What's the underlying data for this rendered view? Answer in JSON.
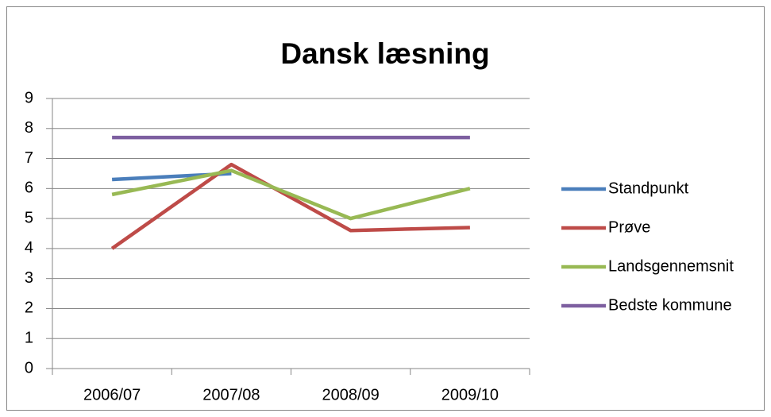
{
  "chart_data": {
    "type": "line",
    "title": "Dansk læsning",
    "categories": [
      "2006/07",
      "2007/08",
      "2008/09",
      "2009/10"
    ],
    "series": [
      {
        "name": "Standpunkt",
        "color": "#4a7ebb",
        "values": [
          6.3,
          6.5,
          null,
          null
        ]
      },
      {
        "name": "Prøve",
        "color": "#be4b48",
        "values": [
          4,
          6.8,
          4.6,
          4.7
        ]
      },
      {
        "name": "Landsgennemsnit",
        "color": "#98b954",
        "values": [
          5.8,
          6.6,
          5.0,
          6.0
        ]
      },
      {
        "name": "Bedste kommune",
        "color": "#7d5fa0",
        "values": [
          7.7,
          7.7,
          7.7,
          7.7
        ]
      }
    ],
    "ylim": [
      0,
      9
    ],
    "yticks": [
      0,
      1,
      2,
      3,
      4,
      5,
      6,
      7,
      8,
      9
    ],
    "grid": true,
    "legend": "right"
  }
}
